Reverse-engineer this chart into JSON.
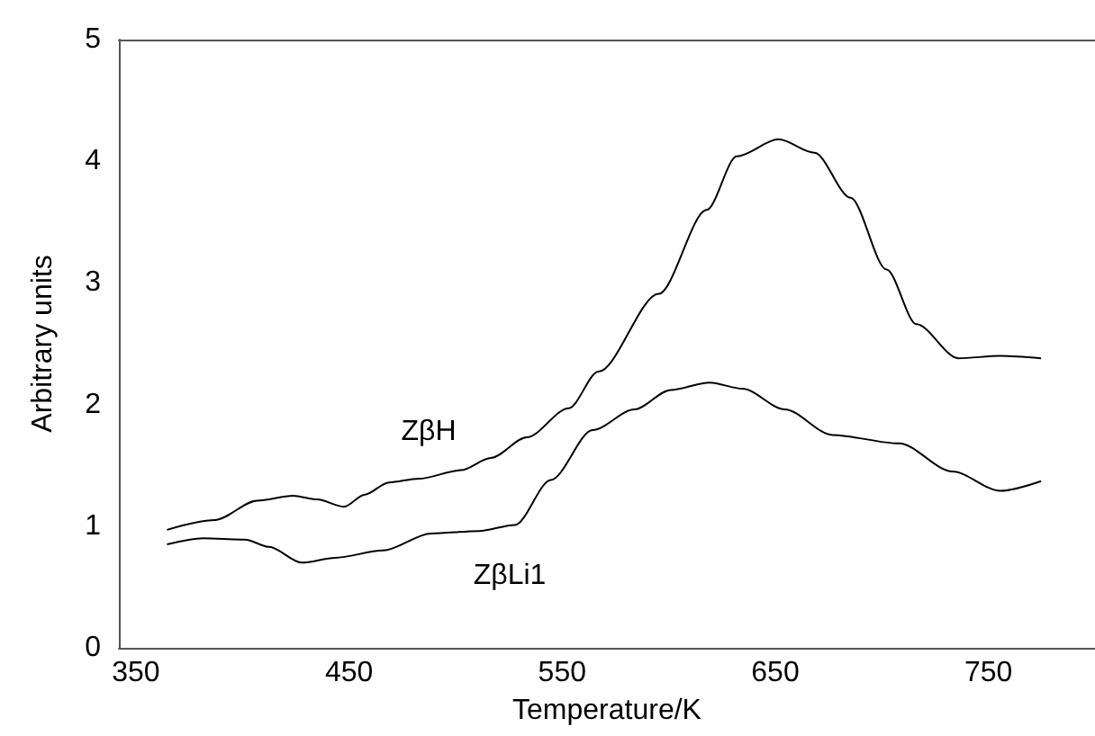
{
  "chart_data": {
    "type": "line",
    "xlabel": "Temperature/K",
    "ylabel": "Arbitrary units",
    "xlim": [
      342,
      800
    ],
    "xticks": [
      350,
      450,
      550,
      650,
      750
    ],
    "ylim": [
      0,
      5
    ],
    "yticks": [
      0,
      1,
      2,
      3,
      4,
      5
    ],
    "grid": false,
    "marker": "none",
    "line_style": "solid",
    "series": [
      {
        "color": "#000000",
        "x": [
          364.6,
          387,
          406.8,
          423.7,
          435,
          447.6,
          457.4,
          468.7,
          482.7,
          502.5,
          516.5,
          533.4,
          553.1,
          567,
          595.3,
          617.8,
          631.9,
          651.5,
          668.4,
          685.3,
          702.2,
          716.2,
          735.9,
          755.6,
          774.7
        ],
        "values": [
          0.97,
          1.05,
          1.21,
          1.25,
          1.22,
          1.16,
          1.26,
          1.36,
          1.39,
          1.46,
          1.56,
          1.73,
          1.97,
          2.27,
          2.91,
          3.6,
          4.04,
          4.18,
          4.07,
          3.7,
          3.11,
          2.66,
          2.38,
          2.4,
          2.38
        ]
      },
      {
        "color": "#000000",
        "x": [
          364.6,
          381.5,
          401.2,
          412.4,
          427.9,
          443.4,
          465.9,
          488.4,
          510.9,
          527.8,
          544.7,
          564.3,
          583.9,
          600.8,
          619.2,
          634.6,
          654.4,
          676.8,
          708.1,
          733.1,
          755.6,
          774.7
        ],
        "values": [
          0.85,
          0.9,
          0.89,
          0.83,
          0.7,
          0.74,
          0.8,
          0.94,
          0.96,
          1.01,
          1.38,
          1.79,
          1.96,
          2.12,
          2.18,
          2.13,
          1.96,
          1.75,
          1.68,
          1.45,
          1.29,
          1.37
        ]
      }
    ],
    "annotations": [
      "ZβH",
      "ZβLi1"
    ]
  }
}
